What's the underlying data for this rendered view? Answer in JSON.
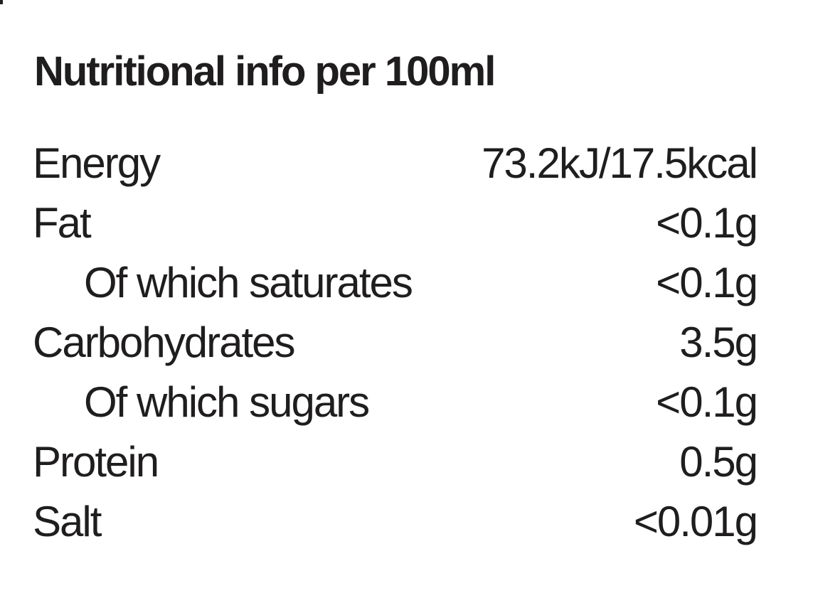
{
  "panel": {
    "title": "Nutritional info per 100ml",
    "rows": [
      {
        "label": "Energy",
        "value": "73.2kJ/17.5kcal"
      },
      {
        "label": "Fat",
        "value": "<0.1g"
      },
      {
        "label": "Of which saturates",
        "value": "<0.1g"
      },
      {
        "label": "Carbohydrates",
        "value": "3.5g"
      },
      {
        "label": "Of which sugars",
        "value": "<0.1g"
      },
      {
        "label": "Protein",
        "value": "0.5g"
      },
      {
        "label": "Salt",
        "value": "<0.01g"
      }
    ]
  }
}
